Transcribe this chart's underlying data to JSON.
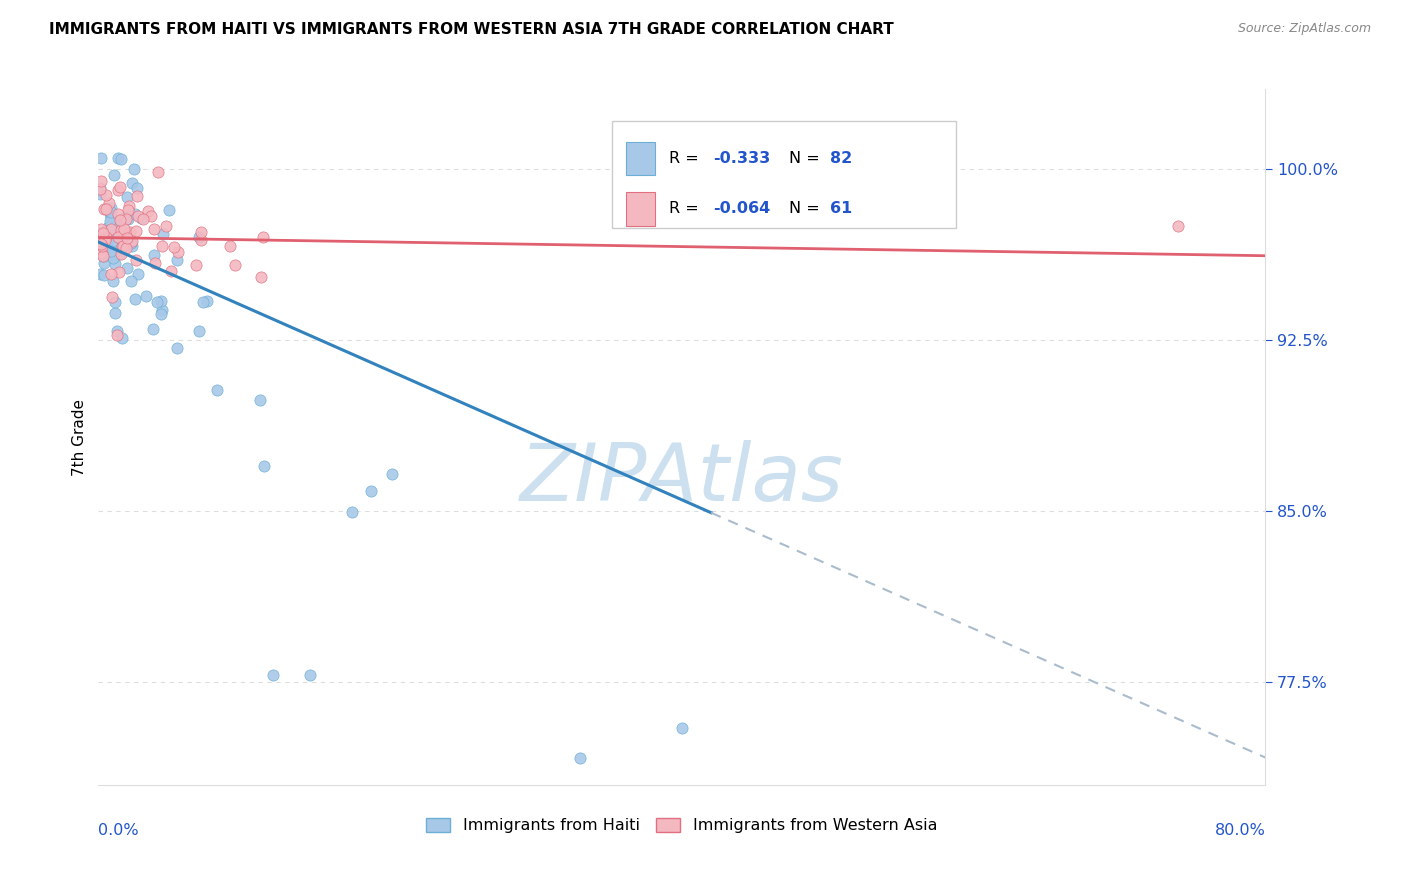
{
  "title": "IMMIGRANTS FROM HAITI VS IMMIGRANTS FROM WESTERN ASIA 7TH GRADE CORRELATION CHART",
  "source": "Source: ZipAtlas.com",
  "ylabel": "7th Grade",
  "ytick_labels": [
    "77.5%",
    "85.0%",
    "92.5%",
    "100.0%"
  ],
  "ytick_values": [
    0.775,
    0.85,
    0.925,
    1.0
  ],
  "xlim": [
    0.0,
    0.8
  ],
  "ylim": [
    0.73,
    1.035
  ],
  "haiti_color_fill": "#a8c8e8",
  "haiti_color_edge": "#6baed6",
  "western_color_fill": "#f4b8c1",
  "western_color_edge": "#e07080",
  "haiti_trend_color": "#3182bd",
  "haiti_dash_color": "#aabbcc",
  "western_trend_color": "#e06070",
  "legend_r_color": "#2255cc",
  "watermark_color": "#cce0f0",
  "grid_color": "#dddddd",
  "legend_haiti_label": "R =  -0.333   N = 82",
  "legend_western_label": "R =  -0.064   N = 61",
  "bottom_legend_haiti": "Immigrants from Haiti",
  "bottom_legend_western": "Immigrants from Western Asia"
}
